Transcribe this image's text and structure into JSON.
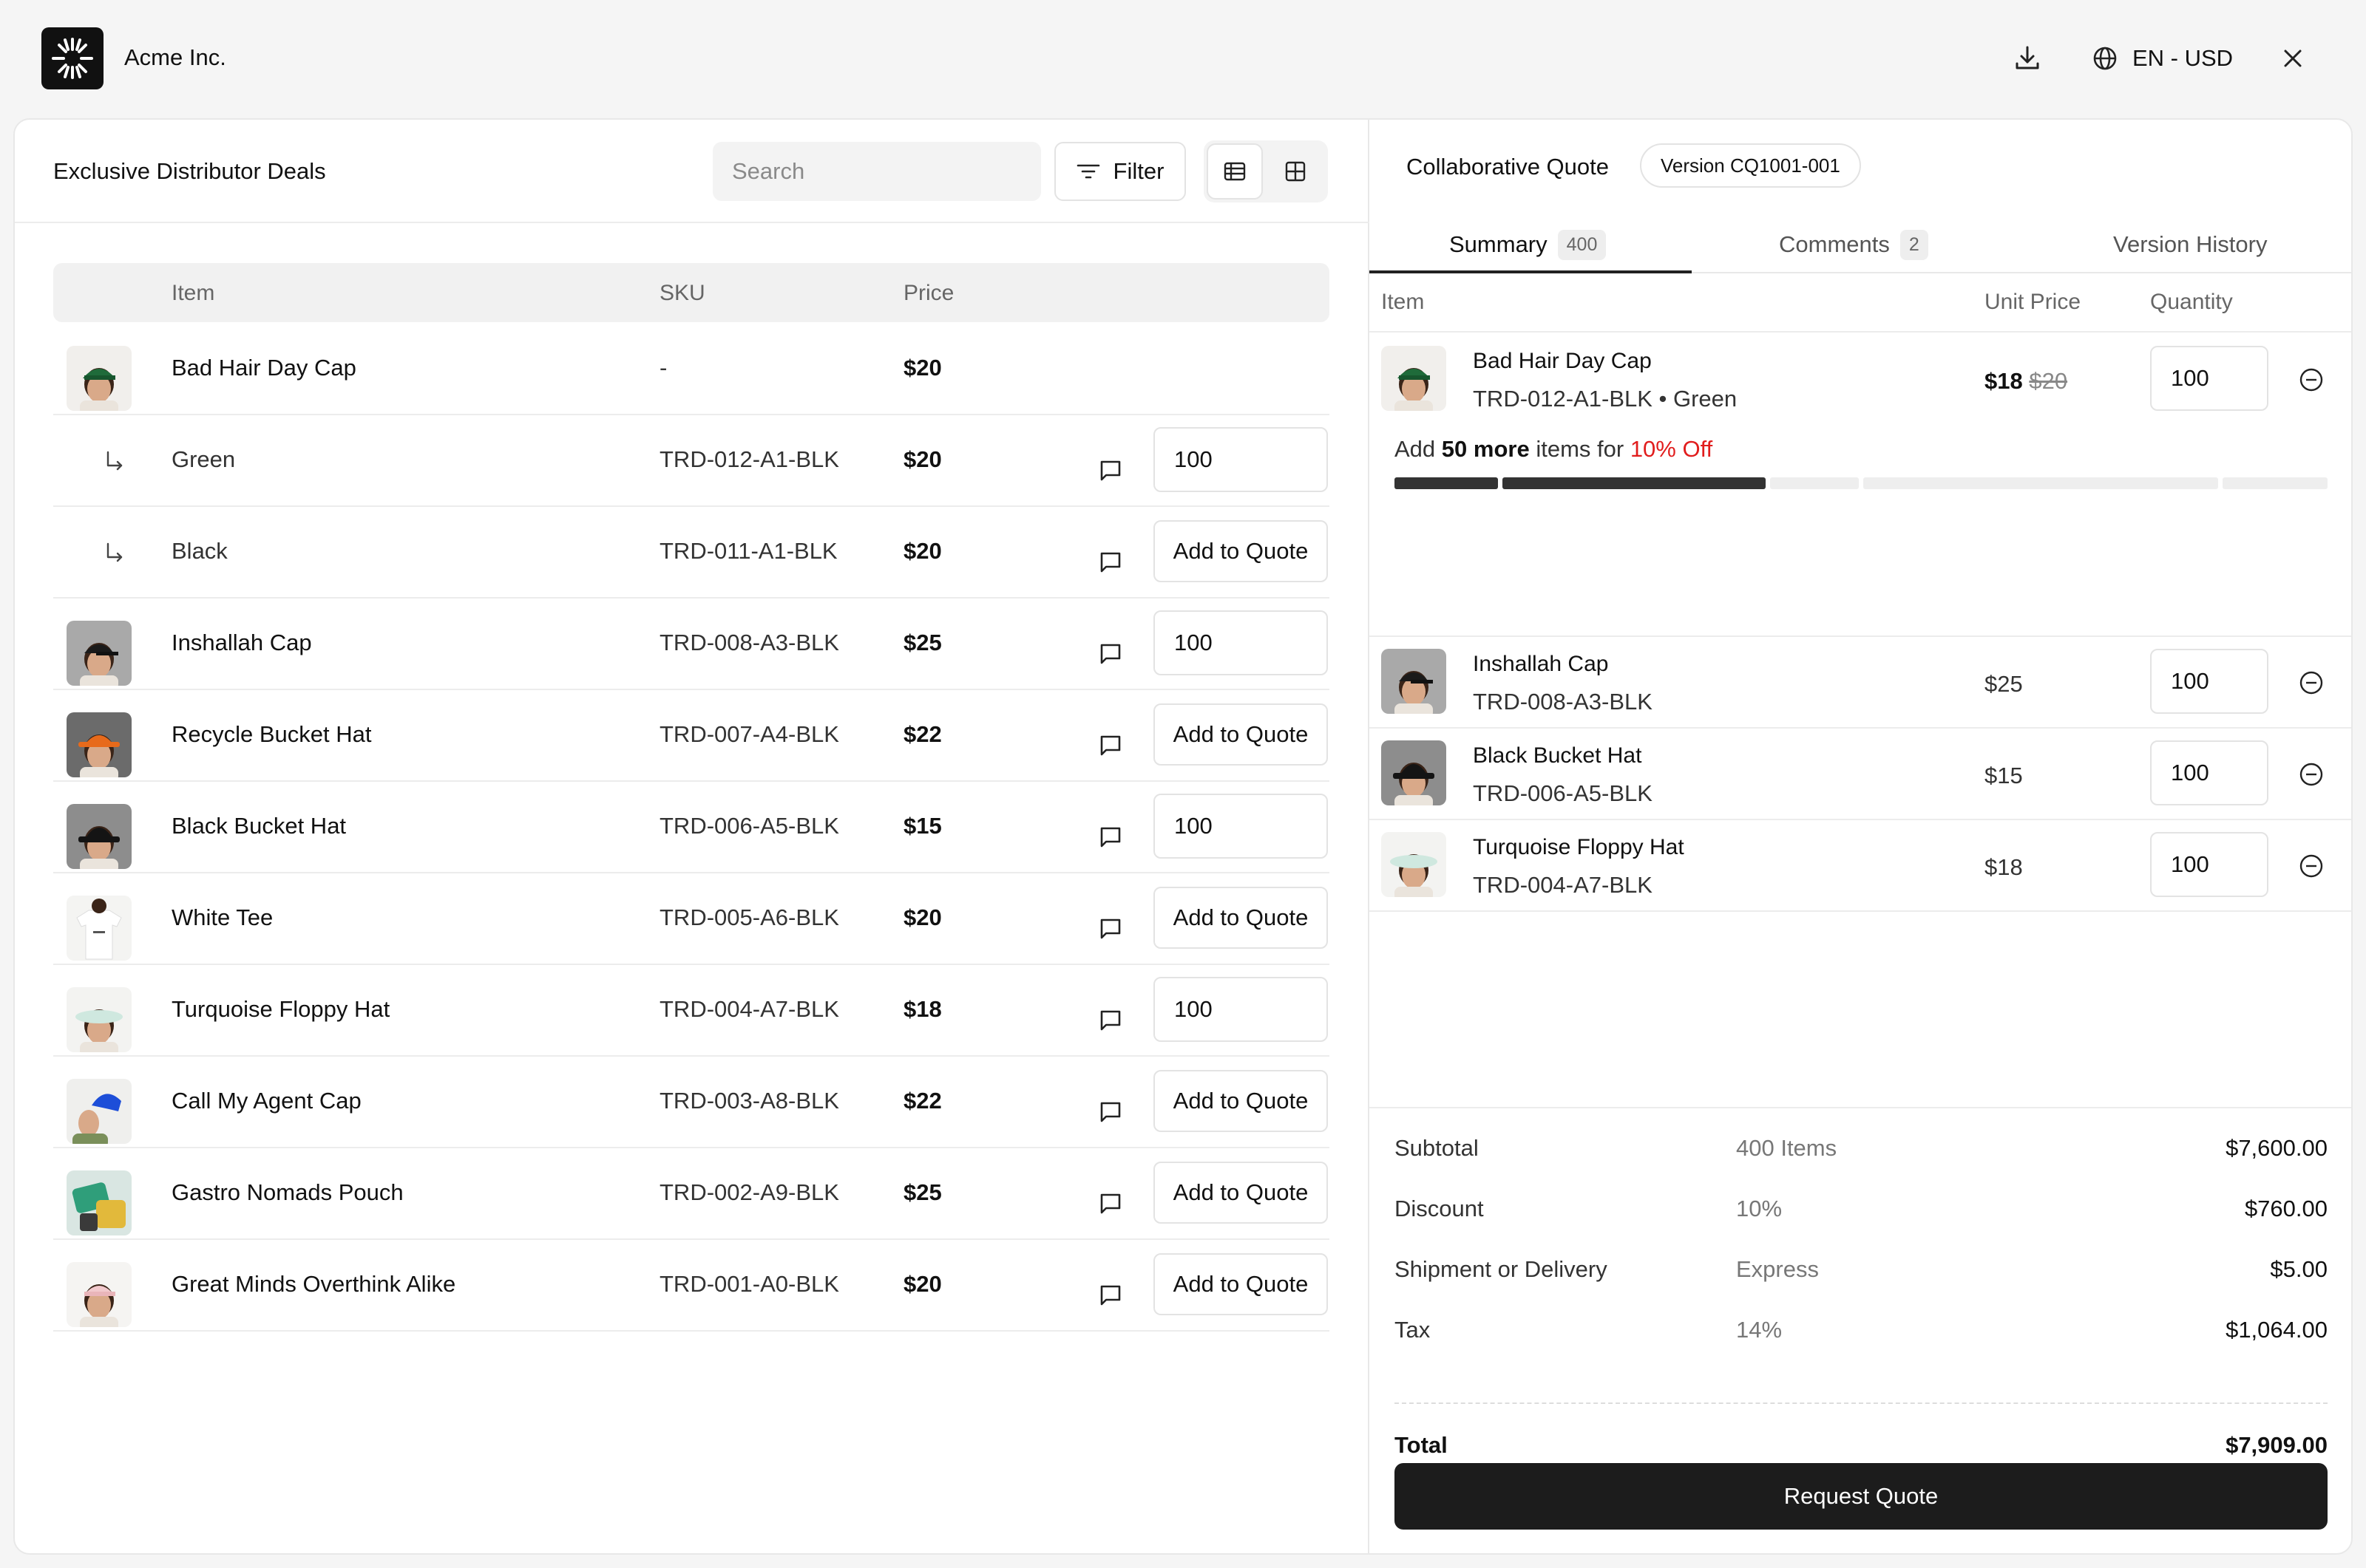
{
  "app": {
    "brand": "Acme Inc.",
    "locale": "EN - USD"
  },
  "catalog": {
    "title": "Exclusive Distributor Deals",
    "search_placeholder": "Search",
    "filter_label": "Filter",
    "columns": {
      "item": "Item",
      "sku": "SKU",
      "price": "Price"
    },
    "rows": [
      {
        "name": "Bad Hair Day Cap",
        "sku": "-",
        "price": "$20",
        "kind": "parent",
        "action": "none",
        "thumb": "green-cap"
      },
      {
        "name": "Green",
        "sku": "TRD-012-A1-BLK",
        "price": "$20",
        "kind": "variant",
        "action": "qty",
        "qty": "100"
      },
      {
        "name": "Black",
        "sku": "TRD-011-A1-BLK",
        "price": "$20",
        "kind": "variant",
        "action": "add",
        "add_label": "Add to Quote"
      },
      {
        "name": "Inshallah Cap",
        "sku": "TRD-008-A3-BLK",
        "price": "$25",
        "kind": "item",
        "action": "qty",
        "qty": "100",
        "thumb": "black-cap"
      },
      {
        "name": "Recycle Bucket Hat",
        "sku": "TRD-007-A4-BLK",
        "price": "$22",
        "kind": "item",
        "action": "add",
        "add_label": "Add to Quote",
        "thumb": "orange-bucket"
      },
      {
        "name": "Black Bucket Hat",
        "sku": "TRD-006-A5-BLK",
        "price": "$15",
        "kind": "item",
        "action": "qty",
        "qty": "100",
        "thumb": "black-bucket"
      },
      {
        "name": "White Tee",
        "sku": "TRD-005-A6-BLK",
        "price": "$20",
        "kind": "item",
        "action": "add",
        "add_label": "Add to Quote",
        "thumb": "white-tee"
      },
      {
        "name": "Turquoise Floppy Hat",
        "sku": "TRD-004-A7-BLK",
        "price": "$18",
        "kind": "item",
        "action": "qty",
        "qty": "100",
        "thumb": "floppy-hat"
      },
      {
        "name": "Call My Agent Cap",
        "sku": "TRD-003-A8-BLK",
        "price": "$22",
        "kind": "item",
        "action": "add",
        "add_label": "Add to Quote",
        "thumb": "blue-cap"
      },
      {
        "name": "Gastro Nomads Pouch",
        "sku": "TRD-002-A9-BLK",
        "price": "$25",
        "kind": "item",
        "action": "add",
        "add_label": "Add to Quote",
        "thumb": "pouch"
      },
      {
        "name": "Great Minds Overthink Alike",
        "sku": "TRD-001-A0-BLK",
        "price": "$20",
        "kind": "item",
        "action": "add",
        "add_label": "Add to Quote",
        "thumb": "pink-cap"
      }
    ]
  },
  "quote": {
    "title": "Collaborative Quote",
    "version": "Version CQ1001-001",
    "tabs": [
      {
        "label": "Summary",
        "count": "400"
      },
      {
        "label": "Comments",
        "count": "2"
      },
      {
        "label": "Version History",
        "count": ""
      }
    ],
    "columns": {
      "item": "Item",
      "unit_price": "Unit Price",
      "quantity": "Quantity"
    },
    "items": [
      {
        "name": "Bad Hair Day Cap",
        "sku": "TRD-012-A1-BLK • Green",
        "price": "$18",
        "old_price": "$20",
        "qty": "100",
        "thumb": "green-cap"
      },
      {
        "name": "Inshallah Cap",
        "sku": "TRD-008-A3-BLK",
        "price": "$25",
        "qty": "100",
        "thumb": "black-cap"
      },
      {
        "name": "Black Bucket Hat",
        "sku": "TRD-006-A5-BLK",
        "price": "$15",
        "qty": "100",
        "thumb": "black-bucket"
      },
      {
        "name": "Turquoise Floppy Hat",
        "sku": "TRD-004-A7-BLK",
        "price": "$18",
        "qty": "100",
        "thumb": "floppy-hat"
      }
    ],
    "promo": {
      "prefix": "Add",
      "amount": "50 more",
      "middle": "items for",
      "discount": "10% Off",
      "progress": 0.4
    },
    "summary": {
      "subtotal": {
        "label": "Subtotal",
        "detail": "400 Items",
        "value": "$7,600.00"
      },
      "discount": {
        "label": "Discount",
        "detail": "10%",
        "value": "$760.00"
      },
      "shipping": {
        "label": "Shipment or Delivery",
        "detail": "Express",
        "value": "$5.00"
      },
      "tax": {
        "label": "Tax",
        "detail": "14%",
        "value": "$1,064.00"
      },
      "total": {
        "label": "Total",
        "value": "$7,909.00"
      }
    },
    "request_label": "Request Quote"
  }
}
